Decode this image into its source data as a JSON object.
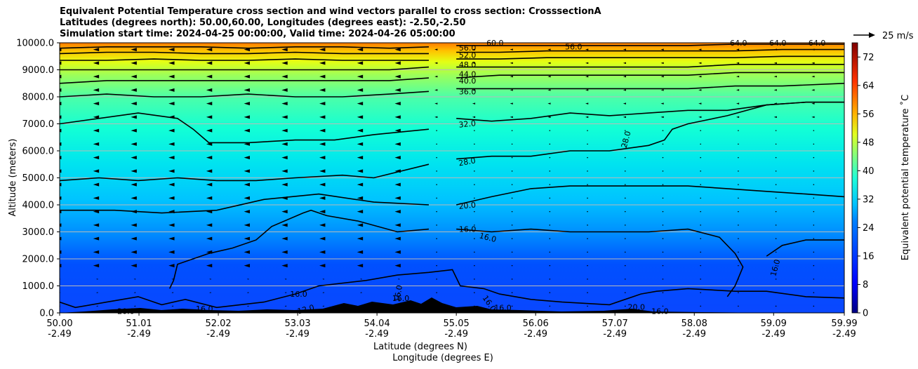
{
  "chart_data": {
    "type": "heatmap",
    "title": {
      "line1": "Equivalent Potential Temperature cross section and wind vectors parallel to cross section: CrosssectionA",
      "line2": "Latitudes (degrees north): 50.00,60.00, Longitudes (degrees east): -2.50,-2.50",
      "line3": "Simulation start time: 2024-04-25 00:00:00, Valid time: 2024-04-26 05:00:00"
    },
    "ylabel": "Altitude (meters)",
    "xlabel_line1": "Latitude (degrees N)",
    "xlabel_line2": "Longitude (degrees E)",
    "ylim": [
      0,
      10000
    ],
    "xlim": [
      50.0,
      59.99
    ],
    "y_ticks": [
      "0.0",
      "1000.0",
      "2000.0",
      "3000.0",
      "4000.0",
      "5000.0",
      "6000.0",
      "7000.0",
      "8000.0",
      "9000.0",
      "10000.0"
    ],
    "x_ticks": [
      {
        "lat": "50.00",
        "lon": "-2.49"
      },
      {
        "lat": "51.01",
        "lon": "-2.49"
      },
      {
        "lat": "52.02",
        "lon": "-2.49"
      },
      {
        "lat": "53.03",
        "lon": "-2.49"
      },
      {
        "lat": "54.04",
        "lon": "-2.49"
      },
      {
        "lat": "55.05",
        "lon": "-2.49"
      },
      {
        "lat": "56.06",
        "lon": "-2.49"
      },
      {
        "lat": "57.07",
        "lon": "-2.49"
      },
      {
        "lat": "58.08",
        "lon": "-2.49"
      },
      {
        "lat": "59.09",
        "lon": "-2.49"
      },
      {
        "lat": "59.99",
        "lon": "-2.49"
      }
    ],
    "colorbar": {
      "label": "Equivalent potential temperature ˚C",
      "min": 0,
      "max": 76,
      "ticks": [
        "0",
        "8",
        "16",
        "24",
        "32",
        "40",
        "48",
        "56",
        "64",
        "72"
      ]
    },
    "quiver_key": {
      "label": "25 m/s"
    },
    "contours": [
      {
        "label": "16.0",
        "points": [
          [
            50.0,
            0.04
          ],
          [
            50.2,
            0.02
          ],
          [
            50.6,
            0.04
          ],
          [
            51.0,
            0.06
          ],
          [
            51.3,
            0.03
          ],
          [
            51.6,
            0.05
          ],
          [
            52.0,
            0.02
          ],
          [
            52.6,
            0.04
          ],
          [
            53.0,
            0.07
          ],
          [
            53.3,
            0.1
          ],
          [
            53.9,
            0.12
          ],
          [
            54.3,
            0.14
          ],
          [
            54.7,
            0.15
          ],
          [
            55.0,
            0.16
          ],
          [
            55.1,
            0.1
          ],
          [
            55.4,
            0.09
          ],
          [
            55.6,
            0.07
          ],
          [
            56.0,
            0.05
          ],
          [
            56.4,
            0.04
          ],
          [
            57.0,
            0.03
          ],
          [
            57.4,
            0.07
          ],
          [
            57.6,
            0.08
          ],
          [
            58.0,
            0.09
          ],
          [
            58.6,
            0.08
          ],
          [
            59.0,
            0.08
          ],
          [
            59.5,
            0.06
          ],
          [
            59.99,
            0.055
          ]
        ]
      },
      {
        "label": "16.0",
        "points": [
          [
            51.4,
            0.09
          ],
          [
            51.45,
            0.12
          ],
          [
            51.5,
            0.18
          ],
          [
            51.9,
            0.22
          ],
          [
            52.2,
            0.24
          ],
          [
            52.5,
            0.27
          ],
          [
            52.7,
            0.32
          ],
          [
            53.1,
            0.37
          ],
          [
            53.2,
            0.38
          ],
          [
            53.4,
            0.36
          ],
          [
            53.8,
            0.34
          ],
          [
            54.3,
            0.3
          ],
          [
            54.7,
            0.31
          ]
        ]
      },
      {
        "label": "16.0",
        "points": [
          [
            55.05,
            0.31
          ],
          [
            55.5,
            0.3
          ],
          [
            56.0,
            0.31
          ],
          [
            56.5,
            0.3
          ],
          [
            57.0,
            0.3
          ],
          [
            57.5,
            0.3
          ],
          [
            58.0,
            0.31
          ],
          [
            58.4,
            0.28
          ],
          [
            58.6,
            0.22
          ],
          [
            58.7,
            0.17
          ],
          [
            58.6,
            0.1
          ],
          [
            58.5,
            0.06
          ]
        ]
      },
      {
        "label": "16.0",
        "points": [
          [
            59.0,
            0.21
          ],
          [
            59.2,
            0.25
          ],
          [
            59.5,
            0.27
          ],
          [
            59.99,
            0.27
          ]
        ]
      },
      {
        "label": "20.0",
        "points": [
          [
            50.0,
            0.38
          ],
          [
            50.7,
            0.38
          ],
          [
            51.3,
            0.37
          ],
          [
            52.0,
            0.38
          ],
          [
            52.6,
            0.42
          ],
          [
            53.3,
            0.44
          ],
          [
            54.0,
            0.41
          ],
          [
            54.7,
            0.4
          ]
        ]
      },
      {
        "label": "20.0",
        "points": [
          [
            55.05,
            0.4
          ],
          [
            55.5,
            0.43
          ],
          [
            56.0,
            0.46
          ],
          [
            56.5,
            0.47
          ],
          [
            57.0,
            0.47
          ],
          [
            57.5,
            0.47
          ],
          [
            58.0,
            0.47
          ],
          [
            58.5,
            0.46
          ],
          [
            59.0,
            0.45
          ],
          [
            59.5,
            0.44
          ],
          [
            59.99,
            0.43
          ]
        ]
      },
      {
        "label": "28.0",
        "points": [
          [
            50.0,
            0.49
          ],
          [
            50.5,
            0.5
          ],
          [
            51.0,
            0.49
          ],
          [
            51.5,
            0.5
          ],
          [
            52.0,
            0.49
          ],
          [
            52.5,
            0.49
          ],
          [
            53.0,
            0.5
          ],
          [
            53.6,
            0.51
          ],
          [
            54.0,
            0.5
          ],
          [
            54.7,
            0.55
          ]
        ]
      },
      {
        "label": "28.0",
        "points": [
          [
            55.05,
            0.57
          ],
          [
            55.5,
            0.58
          ],
          [
            56.0,
            0.58
          ],
          [
            56.5,
            0.6
          ],
          [
            57.0,
            0.6
          ],
          [
            57.5,
            0.62
          ],
          [
            57.7,
            0.64
          ],
          [
            57.8,
            0.68
          ],
          [
            58.0,
            0.7
          ],
          [
            58.5,
            0.73
          ],
          [
            59.0,
            0.77
          ],
          [
            59.5,
            0.78
          ],
          [
            59.99,
            0.78
          ]
        ]
      },
      {
        "label": "32.0",
        "points": [
          [
            50.0,
            0.7
          ],
          [
            50.5,
            0.72
          ],
          [
            51.0,
            0.74
          ],
          [
            51.5,
            0.72
          ],
          [
            51.7,
            0.68
          ],
          [
            51.9,
            0.63
          ],
          [
            52.4,
            0.63
          ],
          [
            53.0,
            0.64
          ],
          [
            53.5,
            0.64
          ],
          [
            54.0,
            0.66
          ],
          [
            54.7,
            0.68
          ]
        ]
      },
      {
        "label": "32.0",
        "points": [
          [
            55.05,
            0.72
          ],
          [
            55.5,
            0.71
          ],
          [
            56.0,
            0.72
          ],
          [
            56.5,
            0.74
          ],
          [
            57.0,
            0.73
          ],
          [
            57.5,
            0.74
          ],
          [
            58.0,
            0.75
          ],
          [
            58.5,
            0.75
          ],
          [
            59.0,
            0.77
          ],
          [
            59.5,
            0.78
          ],
          [
            59.99,
            0.78
          ]
        ]
      },
      {
        "label": "36.0",
        "points": [
          [
            50.0,
            0.8
          ],
          [
            50.6,
            0.81
          ],
          [
            51.2,
            0.8
          ],
          [
            51.8,
            0.8
          ],
          [
            52.4,
            0.81
          ],
          [
            53.0,
            0.8
          ],
          [
            53.6,
            0.8
          ],
          [
            54.2,
            0.81
          ],
          [
            54.7,
            0.82
          ]
        ]
      },
      {
        "label": "36.0",
        "points": [
          [
            55.05,
            0.83
          ],
          [
            55.6,
            0.83
          ],
          [
            56.2,
            0.83
          ],
          [
            56.8,
            0.83
          ],
          [
            57.4,
            0.83
          ],
          [
            58.0,
            0.83
          ],
          [
            58.6,
            0.84
          ],
          [
            59.2,
            0.84
          ],
          [
            59.99,
            0.85
          ]
        ]
      },
      {
        "label": "40.0",
        "points": [
          [
            50.0,
            0.85
          ],
          [
            50.6,
            0.86
          ],
          [
            51.2,
            0.86
          ],
          [
            51.8,
            0.86
          ],
          [
            52.4,
            0.86
          ],
          [
            53.0,
            0.86
          ],
          [
            53.6,
            0.86
          ],
          [
            54.2,
            0.86
          ],
          [
            54.7,
            0.87
          ]
        ]
      },
      {
        "label": "40.0",
        "points": [
          [
            55.05,
            0.87
          ],
          [
            55.6,
            0.88
          ],
          [
            56.2,
            0.88
          ],
          [
            56.8,
            0.88
          ],
          [
            57.4,
            0.88
          ],
          [
            58.0,
            0.88
          ],
          [
            58.6,
            0.89
          ],
          [
            59.2,
            0.89
          ],
          [
            59.99,
            0.89
          ]
        ]
      },
      {
        "label": "44.0",
        "points": [
          [
            50.0,
            0.9
          ],
          [
            50.6,
            0.9
          ],
          [
            51.2,
            0.9
          ],
          [
            51.8,
            0.9
          ],
          [
            52.4,
            0.9
          ],
          [
            53.0,
            0.9
          ],
          [
            53.6,
            0.9
          ],
          [
            54.2,
            0.9
          ],
          [
            54.7,
            0.91
          ]
        ]
      },
      {
        "label": "44.0",
        "points": [
          [
            55.05,
            0.91
          ],
          [
            55.6,
            0.91
          ],
          [
            56.2,
            0.91
          ],
          [
            56.8,
            0.91
          ],
          [
            57.4,
            0.91
          ],
          [
            58.0,
            0.91
          ],
          [
            58.6,
            0.92
          ],
          [
            59.2,
            0.92
          ],
          [
            59.99,
            0.92
          ]
        ]
      },
      {
        "label": "48.0",
        "points": [
          [
            50.0,
            0.935
          ],
          [
            50.6,
            0.935
          ],
          [
            51.2,
            0.94
          ],
          [
            51.8,
            0.935
          ],
          [
            52.4,
            0.935
          ],
          [
            53.0,
            0.94
          ],
          [
            53.6,
            0.935
          ],
          [
            54.2,
            0.935
          ],
          [
            54.7,
            0.935
          ]
        ]
      },
      {
        "label": "48.0",
        "points": [
          [
            55.05,
            0.94
          ],
          [
            55.6,
            0.94
          ],
          [
            56.2,
            0.945
          ],
          [
            56.8,
            0.945
          ],
          [
            57.4,
            0.945
          ],
          [
            58.0,
            0.945
          ],
          [
            58.6,
            0.945
          ],
          [
            59.2,
            0.95
          ],
          [
            59.99,
            0.95
          ]
        ]
      },
      {
        "label": "52.0",
        "points": [
          [
            50.0,
            0.96
          ],
          [
            50.6,
            0.965
          ],
          [
            51.2,
            0.965
          ],
          [
            51.8,
            0.96
          ],
          [
            52.4,
            0.96
          ],
          [
            53.0,
            0.965
          ],
          [
            53.6,
            0.96
          ],
          [
            54.2,
            0.96
          ],
          [
            54.7,
            0.96
          ]
        ]
      },
      {
        "label": "52.0",
        "points": [
          [
            55.05,
            0.965
          ],
          [
            55.6,
            0.965
          ],
          [
            56.2,
            0.97
          ],
          [
            56.8,
            0.97
          ],
          [
            57.4,
            0.97
          ],
          [
            58.0,
            0.97
          ],
          [
            58.6,
            0.97
          ],
          [
            59.2,
            0.975
          ],
          [
            59.99,
            0.975
          ]
        ]
      },
      {
        "label": "56.0",
        "points": [
          [
            50.0,
            0.98
          ],
          [
            50.6,
            0.985
          ],
          [
            51.2,
            0.985
          ],
          [
            51.8,
            0.985
          ],
          [
            52.4,
            0.98
          ],
          [
            53.0,
            0.985
          ],
          [
            53.6,
            0.985
          ],
          [
            54.2,
            0.98
          ],
          [
            54.7,
            0.985
          ]
        ]
      },
      {
        "label": "56.0",
        "points": [
          [
            55.05,
            0.99
          ],
          [
            55.6,
            0.99
          ],
          [
            56.2,
            0.99
          ],
          [
            56.8,
            0.99
          ],
          [
            57.4,
            0.99
          ],
          [
            58.0,
            0.99
          ],
          [
            58.6,
            0.995
          ],
          [
            59.2,
            0.995
          ],
          [
            59.99,
            0.995
          ]
        ]
      }
    ],
    "contour_labels": [
      {
        "text": "56.0",
        "lat": 55.05,
        "alt": 9820,
        "rot": 0
      },
      {
        "text": "52.0",
        "lat": 55.05,
        "alt": 9550,
        "rot": 0
      },
      {
        "text": "48.0",
        "lat": 55.05,
        "alt": 9200,
        "rot": 0
      },
      {
        "text": "44.0",
        "lat": 55.05,
        "alt": 8850,
        "rot": 0
      },
      {
        "text": "40.0",
        "lat": 55.05,
        "alt": 8600,
        "rot": 0
      },
      {
        "text": "36.0",
        "lat": 55.05,
        "alt": 8200,
        "rot": 0
      },
      {
        "text": "32.0",
        "lat": 55.05,
        "alt": 7000,
        "rot": -6
      },
      {
        "text": "28.0",
        "lat": 55.05,
        "alt": 5600,
        "rot": -10
      },
      {
        "text": "20.0",
        "lat": 55.05,
        "alt": 3980,
        "rot": -6
      },
      {
        "text": "16.0",
        "lat": 55.05,
        "alt": 3100,
        "rot": 0
      },
      {
        "text": "16.0",
        "lat": 55.3,
        "alt": 2800,
        "rot": 15
      },
      {
        "text": "60.0",
        "lat": 55.4,
        "alt": 10000,
        "rot": 0
      },
      {
        "text": "56.0",
        "lat": 56.4,
        "alt": 9860,
        "rot": 0
      },
      {
        "text": "64.0",
        "lat": 58.5,
        "alt": 10000,
        "rot": 0
      },
      {
        "text": "64.0",
        "lat": 59.0,
        "alt": 10000,
        "rot": 0
      },
      {
        "text": "64.0",
        "lat": 59.5,
        "alt": 10000,
        "rot": 0
      },
      {
        "text": "28.0",
        "lat": 57.1,
        "alt": 6500,
        "rot": -75
      },
      {
        "text": "16.0",
        "lat": 59.0,
        "alt": 1750,
        "rot": -75
      },
      {
        "text": "16.0",
        "lat": 52.9,
        "alt": 700,
        "rot": 0
      },
      {
        "text": "16.0",
        "lat": 54.2,
        "alt": 800,
        "rot": -80
      },
      {
        "text": "16.0",
        "lat": 54.2,
        "alt": 550,
        "rot": 0
      },
      {
        "text": "16.0",
        "lat": 55.3,
        "alt": 400,
        "rot": 55
      },
      {
        "text": "16.0",
        "lat": 55.5,
        "alt": 200,
        "rot": 0
      },
      {
        "text": "16.0",
        "lat": 57.5,
        "alt": 60,
        "rot": 0
      },
      {
        "text": "20.0",
        "lat": 50.7,
        "alt": 60,
        "rot": 0
      },
      {
        "text": "16.0",
        "lat": 51.7,
        "alt": 160,
        "rot": 0
      },
      {
        "text": "20.0",
        "lat": 57.2,
        "alt": 220,
        "rot": 0
      },
      {
        "text": "12.0",
        "lat": 53.0,
        "alt": 140,
        "rot": -15
      }
    ]
  }
}
